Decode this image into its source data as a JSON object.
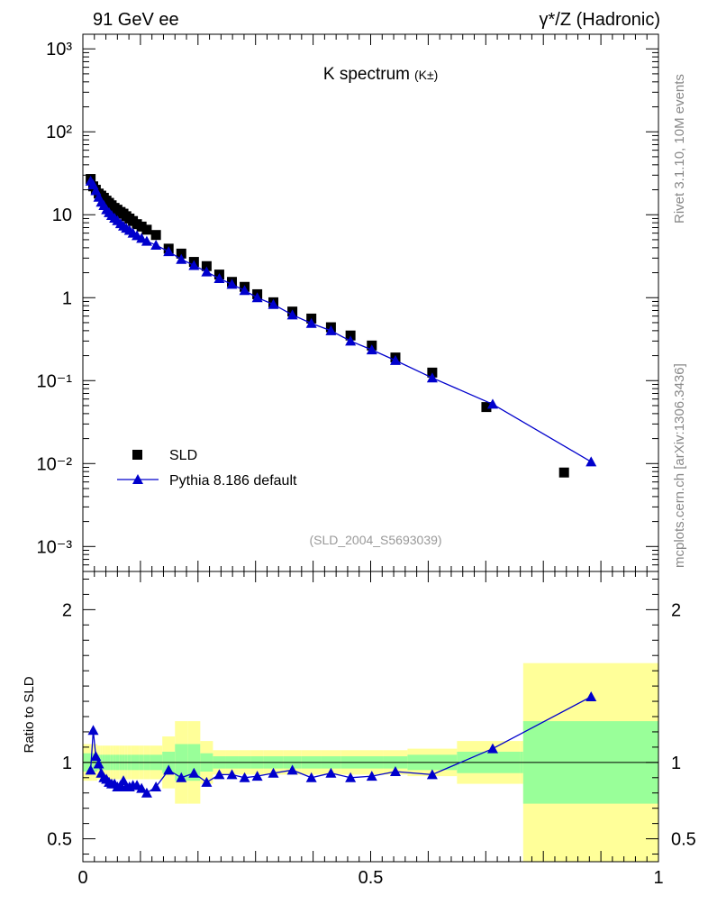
{
  "header": {
    "left": "91 GeV ee",
    "right": "γ*/Z (Hadronic)"
  },
  "side": {
    "top": "Rivet 3.1.10,  10M events",
    "bottom": "mcplots.cern.ch [arXiv:1306.3436]"
  },
  "chart_data": [
    {
      "type": "scatter",
      "title_main": "K spectrum",
      "title_sub": "(K±)",
      "analysis_label": "(SLD_2004_S5693039)",
      "xlim": [
        0,
        1
      ],
      "yscale": "log",
      "ylim": [
        0.0005,
        1500
      ],
      "ytick_labels": [
        "10³",
        "10²",
        "10",
        "1",
        "10⁻¹",
        "10⁻²",
        "10⁻³"
      ],
      "legend_position": "lower-left",
      "series": [
        {
          "name": "SLD",
          "marker": "square",
          "color": "#000000",
          "x": [
            0.0135,
            0.018,
            0.0225,
            0.0275,
            0.032,
            0.0365,
            0.041,
            0.0455,
            0.05,
            0.055,
            0.06,
            0.0655,
            0.0705,
            0.0755,
            0.081,
            0.087,
            0.094,
            0.102,
            0.111,
            0.127,
            0.149,
            0.171,
            0.193,
            0.215,
            0.237,
            0.259,
            0.281,
            0.303,
            0.331,
            0.364,
            0.397,
            0.431,
            0.465,
            0.502,
            0.543,
            0.607,
            0.701,
            0.836
          ],
          "y": [
            27,
            22,
            20,
            18,
            17,
            16,
            14.8,
            13.9,
            13,
            12.1,
            11.5,
            10.8,
            10.3,
            9.6,
            9.0,
            8.4,
            7.7,
            7.2,
            6.6,
            5.7,
            3.9,
            3.4,
            2.7,
            2.4,
            1.9,
            1.55,
            1.35,
            1.1,
            0.88,
            0.68,
            0.56,
            0.44,
            0.35,
            0.265,
            0.19,
            0.125,
            0.048,
            0.0078
          ]
        },
        {
          "name": "Pythia 8.186 default",
          "marker": "triangle",
          "color": "#0000cc",
          "x": [
            0.0135,
            0.018,
            0.0225,
            0.0275,
            0.032,
            0.0365,
            0.041,
            0.0455,
            0.05,
            0.055,
            0.06,
            0.0655,
            0.0705,
            0.0755,
            0.081,
            0.087,
            0.094,
            0.102,
            0.111,
            0.127,
            0.149,
            0.171,
            0.193,
            0.215,
            0.237,
            0.259,
            0.281,
            0.303,
            0.331,
            0.364,
            0.397,
            0.431,
            0.465,
            0.502,
            0.543,
            0.607,
            0.712,
            0.883
          ],
          "y": [
            25.5,
            23,
            19.5,
            16.3,
            14.2,
            12.9,
            11.5,
            10.6,
            9.8,
            9.1,
            8.5,
            7.8,
            7.3,
            6.9,
            6.5,
            6.0,
            5.6,
            5.2,
            4.8,
            4.3,
            3.6,
            2.9,
            2.45,
            2.05,
            1.7,
            1.45,
            1.22,
            1.0,
            0.83,
            0.62,
            0.49,
            0.4,
            0.3,
            0.235,
            0.175,
            0.108,
            0.052,
            0.0105
          ]
        }
      ]
    },
    {
      "type": "line",
      "ylabel": "Ratio to SLD",
      "xlim": [
        0,
        1
      ],
      "ylim": [
        0.35,
        2.25
      ],
      "xtick_labels": [
        "0",
        "0.5",
        "1"
      ],
      "ytick_labels": [
        "0.5",
        "1",
        "2"
      ],
      "bins": [
        0.0,
        0.016,
        0.02,
        0.025,
        0.03,
        0.034,
        0.039,
        0.043,
        0.048,
        0.052,
        0.057,
        0.063,
        0.068,
        0.073,
        0.078,
        0.084,
        0.09,
        0.098,
        0.106,
        0.116,
        0.138,
        0.16,
        0.182,
        0.204,
        0.226,
        0.248,
        0.27,
        0.292,
        0.314,
        0.348,
        0.38,
        0.414,
        0.448,
        0.482,
        0.522,
        0.564,
        0.65,
        0.76,
        0.765,
        1.0
      ],
      "band_inner": [
        0.06,
        0.06,
        0.06,
        0.05,
        0.05,
        0.05,
        0.05,
        0.05,
        0.05,
        0.05,
        0.05,
        0.05,
        0.05,
        0.05,
        0.05,
        0.05,
        0.05,
        0.05,
        0.05,
        0.05,
        0.07,
        0.12,
        0.12,
        0.06,
        0.04,
        0.04,
        0.04,
        0.04,
        0.04,
        0.04,
        0.04,
        0.04,
        0.04,
        0.04,
        0.04,
        0.05,
        0.07,
        0.07,
        0.27
      ],
      "band_outer": [
        0.12,
        0.12,
        0.12,
        0.11,
        0.11,
        0.11,
        0.11,
        0.11,
        0.11,
        0.11,
        0.11,
        0.11,
        0.11,
        0.11,
        0.11,
        0.11,
        0.11,
        0.11,
        0.11,
        0.11,
        0.17,
        0.27,
        0.27,
        0.14,
        0.08,
        0.08,
        0.08,
        0.08,
        0.08,
        0.08,
        0.08,
        0.08,
        0.08,
        0.08,
        0.08,
        0.09,
        0.14,
        0.14,
        0.65
      ],
      "series": [
        {
          "name": "Pythia 8.186 default",
          "color": "#0000cc",
          "x": [
            0.0135,
            0.018,
            0.0225,
            0.0275,
            0.032,
            0.0365,
            0.041,
            0.0455,
            0.05,
            0.055,
            0.06,
            0.0655,
            0.0705,
            0.0755,
            0.081,
            0.087,
            0.094,
            0.102,
            0.111,
            0.127,
            0.149,
            0.171,
            0.193,
            0.215,
            0.237,
            0.259,
            0.281,
            0.303,
            0.331,
            0.364,
            0.397,
            0.431,
            0.465,
            0.502,
            0.543,
            0.607,
            0.712,
            0.883
          ],
          "y": [
            0.95,
            1.21,
            1.04,
            0.99,
            0.93,
            0.9,
            0.89,
            0.87,
            0.86,
            0.86,
            0.84,
            0.85,
            0.88,
            0.84,
            0.84,
            0.85,
            0.85,
            0.83,
            0.8,
            0.84,
            0.95,
            0.9,
            0.93,
            0.87,
            0.92,
            0.92,
            0.9,
            0.91,
            0.93,
            0.95,
            0.9,
            0.93,
            0.9,
            0.91,
            0.94,
            0.92,
            1.09,
            1.43
          ]
        }
      ]
    }
  ]
}
